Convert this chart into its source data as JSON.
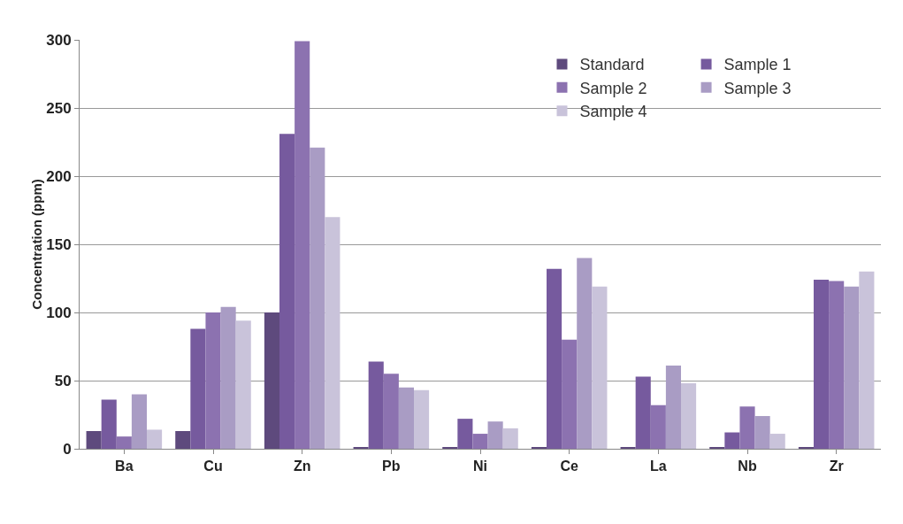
{
  "chart_data": {
    "type": "bar",
    "ylabel": "Concentration (ppm)",
    "categories": [
      "Ba",
      "Cu",
      "Zn",
      "Pb",
      "Ni",
      "Ce",
      "La",
      "Nb",
      "Zr"
    ],
    "series": [
      {
        "name": "Standard",
        "color": "#5e4a7d",
        "values": [
          13,
          13,
          100,
          1,
          1,
          1,
          1,
          1,
          1
        ]
      },
      {
        "name": "Sample 1",
        "color": "#765a9e",
        "values": [
          36,
          88,
          231,
          64,
          22,
          132,
          53,
          12,
          124
        ]
      },
      {
        "name": "Sample 2",
        "color": "#8c72b0",
        "values": [
          9,
          100,
          299,
          55,
          11,
          80,
          32,
          31,
          123
        ]
      },
      {
        "name": "Sample 3",
        "color": "#a99cc4",
        "values": [
          40,
          104,
          221,
          45,
          20,
          140,
          61,
          24,
          119
        ]
      },
      {
        "name": "Sample 4",
        "color": "#c9c3da",
        "values": [
          14,
          94,
          170,
          43,
          15,
          119,
          48,
          11,
          130
        ]
      }
    ],
    "ylim": [
      0,
      300
    ],
    "yticks": [
      0,
      50,
      100,
      150,
      200,
      250,
      300
    ],
    "grid": "y",
    "legend": "top right"
  }
}
